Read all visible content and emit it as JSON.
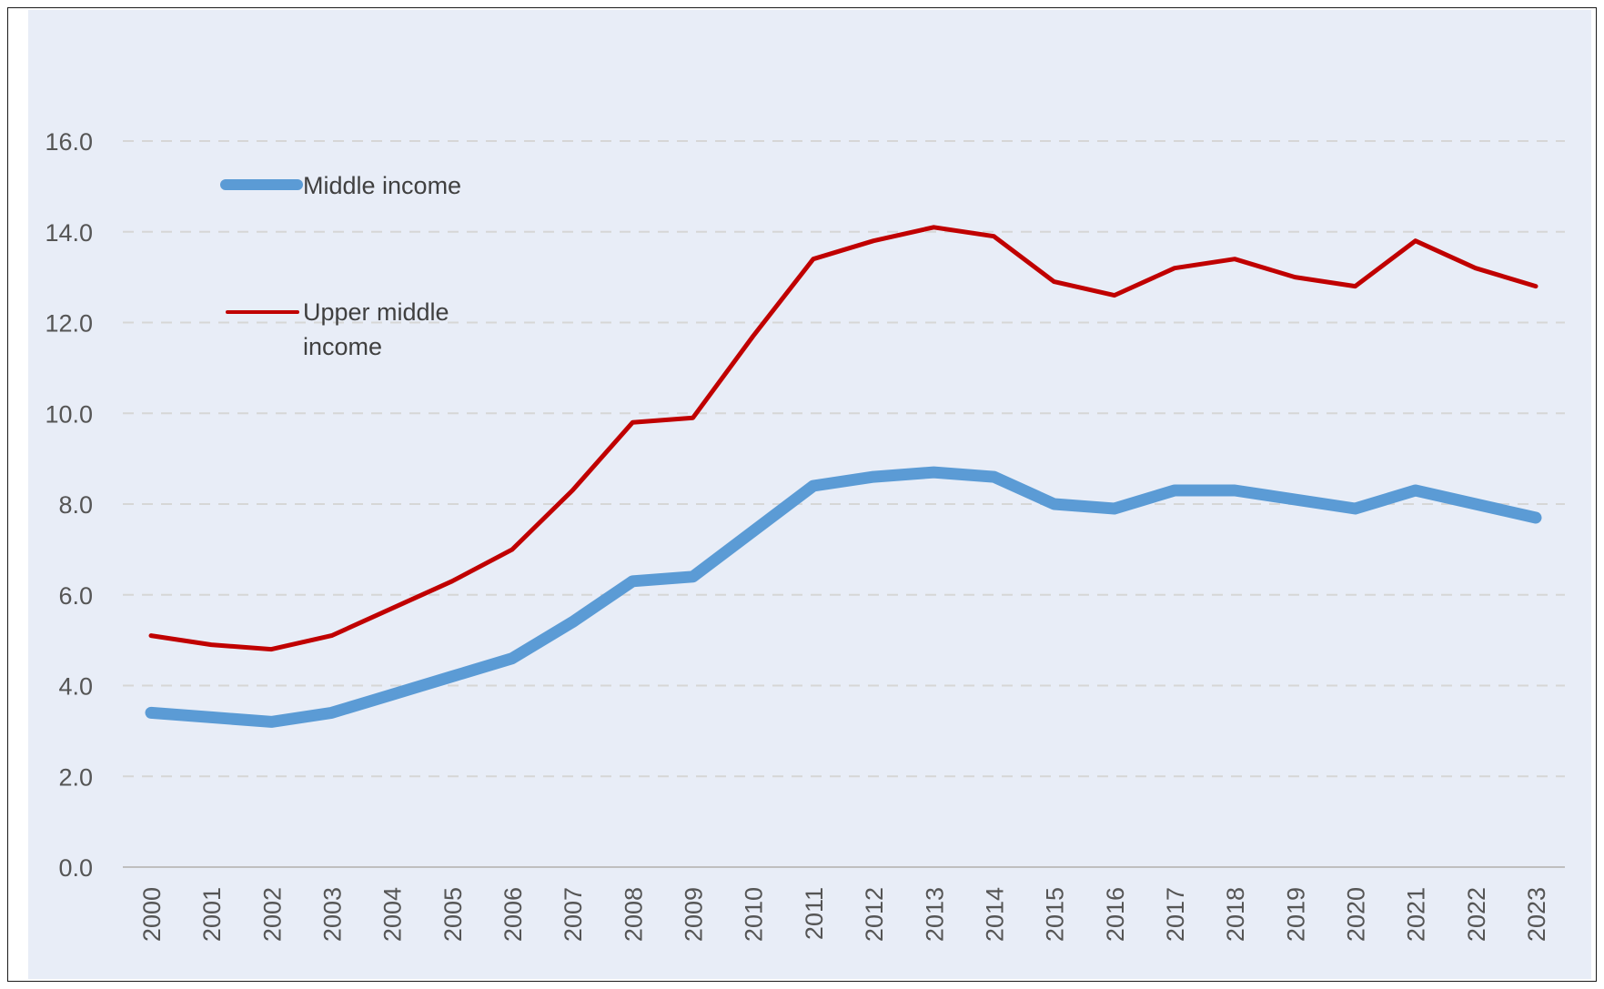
{
  "chart_data": {
    "type": "line",
    "categories": [
      "2000",
      "2001",
      "2002",
      "2003",
      "2004",
      "2005",
      "2006",
      "2007",
      "2008",
      "2009",
      "2010",
      "2011",
      "2012",
      "2013",
      "2014",
      "2015",
      "2016",
      "2017",
      "2018",
      "2019",
      "2020",
      "2021",
      "2022",
      "2023"
    ],
    "series": [
      {
        "name": "Middle income",
        "color": "#5b9bd5",
        "values": [
          3.4,
          3.3,
          3.2,
          3.4,
          3.8,
          4.2,
          4.6,
          5.4,
          6.3,
          6.4,
          7.4,
          8.4,
          8.6,
          8.7,
          8.6,
          8.0,
          7.9,
          8.3,
          8.3,
          8.1,
          7.9,
          8.3,
          8.0,
          7.7
        ]
      },
      {
        "name": "Upper middle income",
        "color": "#c00000",
        "values": [
          5.1,
          4.9,
          4.8,
          5.1,
          5.7,
          6.3,
          7.0,
          8.3,
          9.8,
          9.9,
          11.7,
          13.4,
          13.8,
          14.1,
          13.9,
          12.9,
          12.6,
          13.2,
          13.4,
          13.0,
          12.8,
          13.8,
          13.2,
          12.8
        ]
      }
    ],
    "y_ticks": [
      "0.0",
      "2.0",
      "4.0",
      "6.0",
      "8.0",
      "10.0",
      "12.0",
      "14.0",
      "16.0"
    ],
    "ylim": [
      0,
      16
    ],
    "title": "",
    "xlabel": "",
    "ylabel": "",
    "grid": "horizontal dashed",
    "legend_placement": "top-left"
  },
  "legend": {
    "middle_income": "Middle income",
    "upper_middle_line1": "Upper middle",
    "upper_middle_line2": "income"
  }
}
